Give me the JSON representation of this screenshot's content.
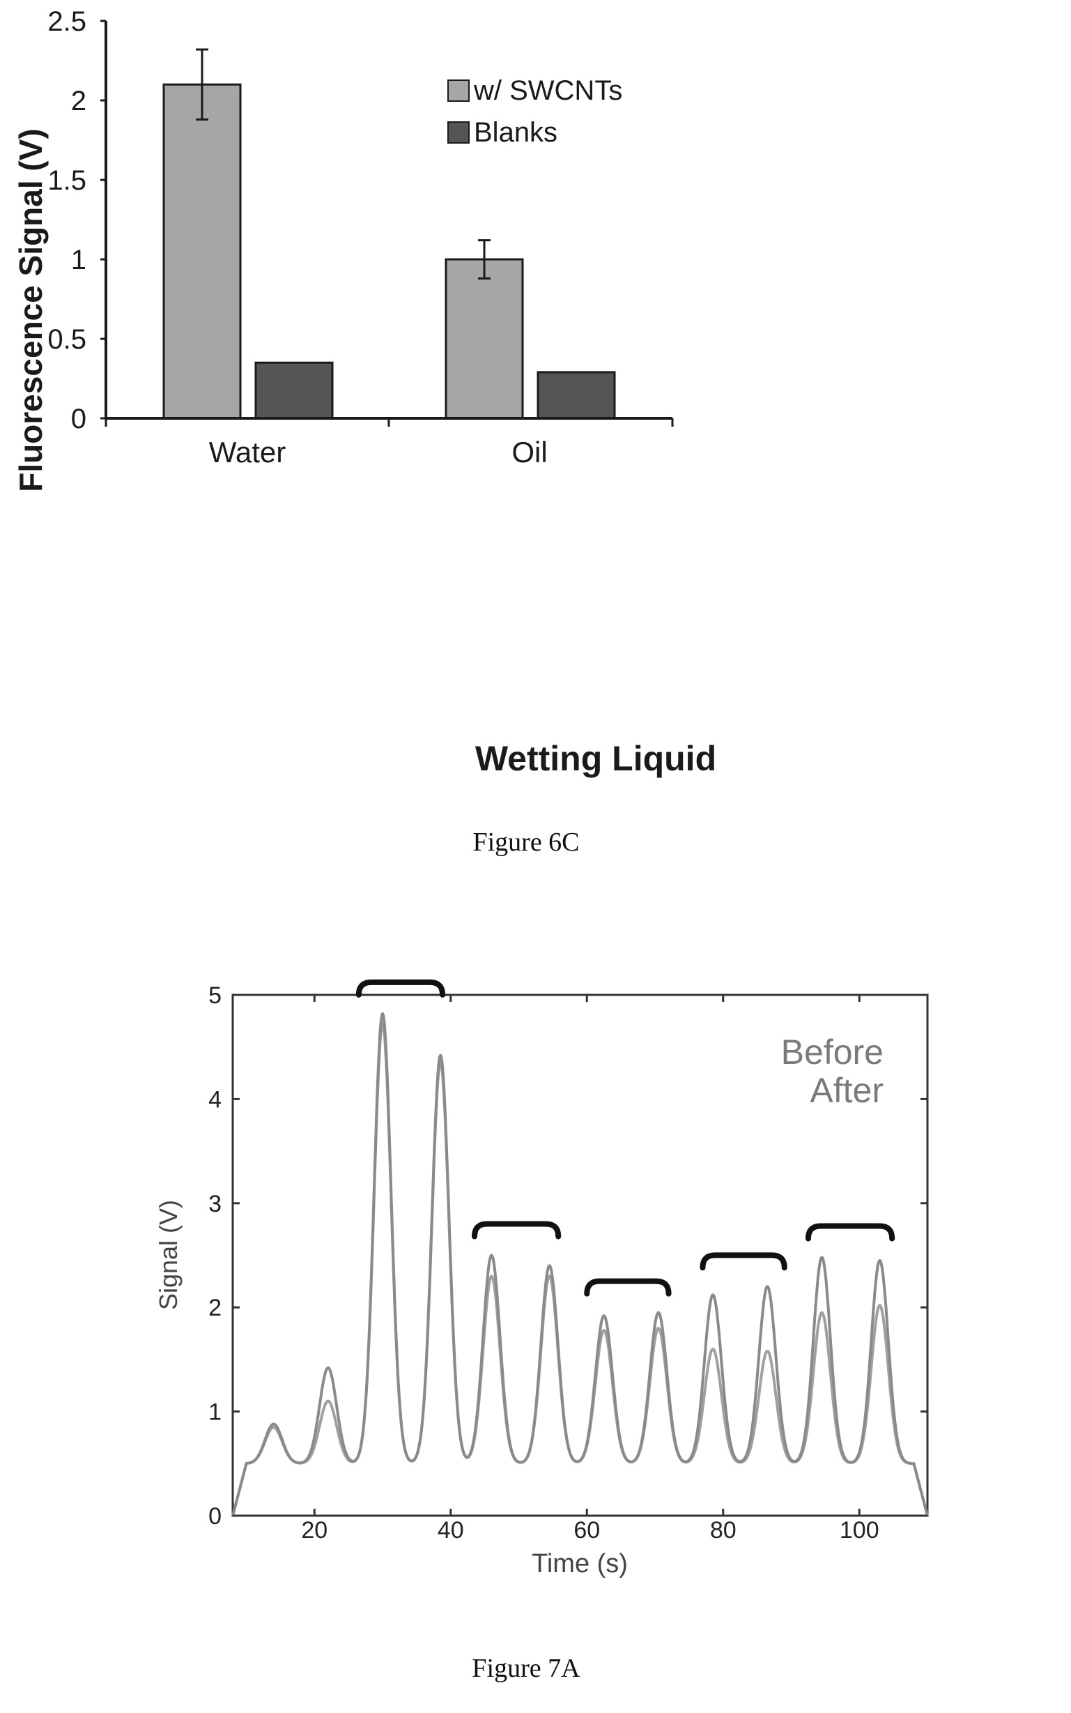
{
  "chart_data": [
    {
      "type": "bar",
      "xlabel": "Wetting Liquid",
      "ylabel": "Fluorescence Signal (V)",
      "categories": [
        "Water",
        "Oil"
      ],
      "ylim": [
        0,
        2.5
      ],
      "yticks": [
        "0",
        "0.5",
        "1",
        "1.5",
        "2",
        "2.5"
      ],
      "series": [
        {
          "name": "w/ SWCNTs",
          "values": [
            2.1,
            1.0
          ],
          "errors": [
            0.22,
            0.12
          ],
          "color": "#a6a6a6"
        },
        {
          "name": "Blanks",
          "values": [
            0.35,
            0.29
          ],
          "color": "#555555"
        }
      ],
      "legend_position": "top-right",
      "caption": "Figure 6C"
    },
    {
      "type": "line",
      "xlabel": "Time (s)",
      "ylabel": "Signal (V)",
      "xlim": [
        8,
        110
      ],
      "ylim": [
        0,
        5
      ],
      "xticks": [
        "20",
        "40",
        "60",
        "80",
        "100"
      ],
      "yticks": [
        "0",
        "1",
        "2",
        "3",
        "4",
        "5"
      ],
      "baseline": 0.5,
      "series": [
        {
          "name": "Before",
          "color": "#8a8a8a",
          "peaks_x": [
            14,
            22,
            30,
            38.5,
            46,
            54.5,
            62.5,
            70.5,
            78.5,
            86.5,
            94.5,
            103
          ],
          "peaks_y": [
            0.88,
            1.42,
            4.82,
            4.42,
            2.5,
            2.4,
            1.92,
            1.95,
            2.12,
            2.2,
            2.48,
            2.45
          ]
        },
        {
          "name": "After",
          "color": "#a0a0a0",
          "peaks_x": [
            14,
            22,
            30,
            38.5,
            46,
            54.5,
            62.5,
            70.5,
            78.5,
            86.5,
            94.5,
            103
          ],
          "peaks_y": [
            0.85,
            1.1,
            4.72,
            4.35,
            2.3,
            2.3,
            1.78,
            1.8,
            1.6,
            1.58,
            1.95,
            2.02
          ]
        }
      ],
      "brackets": [
        [
          26.5,
          38.8
        ],
        [
          43.5,
          55.8
        ],
        [
          60,
          72
        ],
        [
          77,
          89
        ],
        [
          92.5,
          104.8
        ]
      ],
      "legend_position": "top-right",
      "caption": "Figure 7A"
    }
  ]
}
